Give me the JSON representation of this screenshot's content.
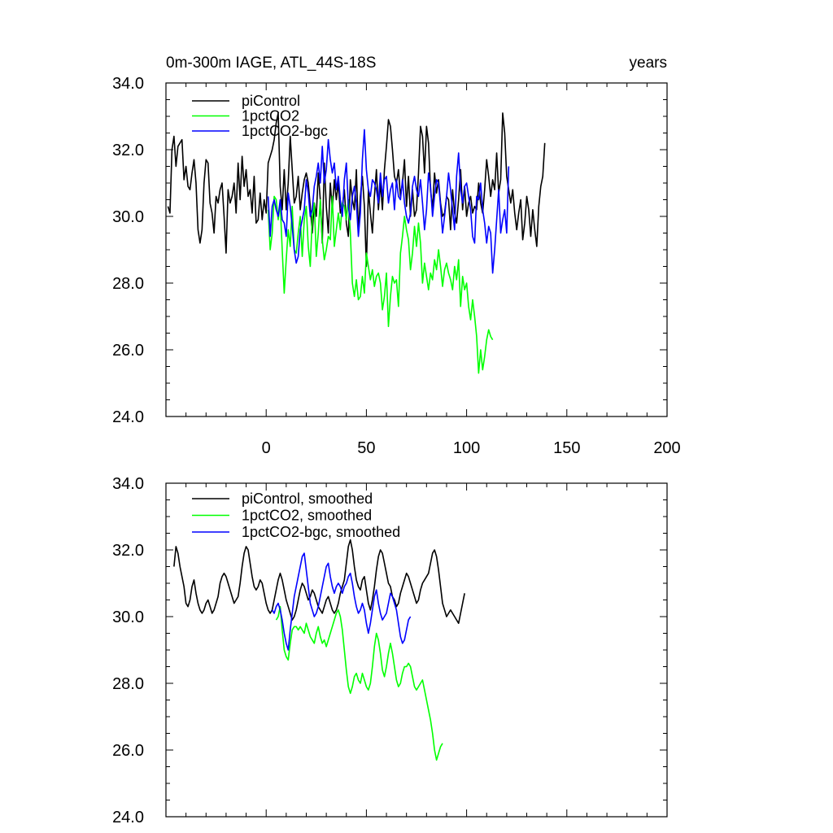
{
  "chart_data": [
    {
      "type": "line",
      "title": "0m-300m IAGE, ATL_44S-18S",
      "units": "years",
      "xlabel": "",
      "ylabel": "",
      "xlim": [
        -50,
        200
      ],
      "ylim": [
        24,
        34
      ],
      "xticks": [
        "0",
        "50",
        "100",
        "150",
        "200"
      ],
      "yticks": [
        "24.0",
        "26.0",
        "28.0",
        "30.0",
        "32.0",
        "34.0"
      ],
      "legend_position": "top-left",
      "grid": false,
      "series": [
        {
          "name": "piControl",
          "color": "#000000",
          "x_start": -49,
          "values": [
            30.3,
            30.1,
            32.0,
            32.4,
            31.5,
            32.1,
            32.2,
            32.3,
            31.1,
            31.5,
            30.9,
            30.8,
            31.3,
            31.7,
            31.0,
            29.6,
            29.2,
            29.6,
            31.0,
            31.7,
            31.6,
            30.4,
            30.1,
            29.5,
            30.6,
            30.4,
            30.8,
            31.0,
            30.0,
            28.9,
            30.8,
            30.4,
            30.6,
            31.0,
            30.1,
            31.6,
            30.5,
            31.8,
            30.9,
            31.4,
            30.6,
            30.8,
            30.1,
            31.2,
            29.8,
            29.9,
            30.7,
            29.9,
            30.5,
            30.1,
            31.6,
            31.8,
            32.0,
            32.3,
            32.8,
            33.1,
            30.9,
            30.2,
            31.4,
            30.2,
            31.0,
            32.4,
            31.4,
            30.4,
            30.6,
            31.2,
            30.2,
            30.7,
            31.1,
            31.3,
            31.0,
            30.3,
            29.5,
            30.4,
            30.0,
            31.3,
            30.5,
            29.2,
            31.6,
            30.3,
            29.5,
            31.0,
            30.2,
            31.1,
            30.5,
            31.0,
            30.1,
            30.3,
            30.8,
            29.8,
            29.4,
            31.1,
            30.5,
            30.2,
            31.4,
            29.5,
            30.6,
            31.2,
            30.3,
            28.5,
            30.8,
            30.1,
            29.5,
            30.6,
            31.4,
            30.2,
            31.0,
            30.2,
            31.4,
            32.1,
            32.9,
            32.7,
            32.0,
            31.2,
            31.0,
            31.4,
            30.6,
            31.0,
            31.7,
            30.3,
            31.2,
            30.0,
            30.8,
            30.0,
            30.2,
            31.3,
            32.7,
            32.4,
            31.3,
            32.7,
            32.2,
            30.8,
            30.2,
            31.3,
            30.7,
            31.1,
            30.4,
            30.0,
            30.1,
            30.6,
            30.5,
            29.6,
            30.8,
            30.1,
            29.8,
            30.5,
            31.4,
            30.2,
            30.9,
            30.0,
            30.4,
            30.6,
            30.1,
            30.3,
            30.2,
            31.0,
            30.4,
            30.1,
            30.8,
            31.7,
            31.2,
            30.6,
            31.1,
            30.8,
            31.9,
            30.7,
            31.1,
            33.1,
            32.5,
            31.2,
            30.8,
            30.4,
            30.8,
            30.1,
            29.6,
            30.1,
            30.5,
            29.3,
            29.8,
            30.6,
            30.2,
            29.4,
            30.2,
            29.6,
            29.1,
            30.3,
            30.9,
            31.2,
            32.2
          ]
        },
        {
          "name": "1pctCO2",
          "color": "#00ff00",
          "x_start": 1,
          "values": [
            30.2,
            29.0,
            29.5,
            30.6,
            30.5,
            29.9,
            30.4,
            29.0,
            27.7,
            28.7,
            29.6,
            29.1,
            30.3,
            29.0,
            28.9,
            29.5,
            30.0,
            28.8,
            29.9,
            30.3,
            29.1,
            28.5,
            30.0,
            30.4,
            28.8,
            29.5,
            30.5,
            29.3,
            28.7,
            29.0,
            29.4,
            29.3,
            30.6,
            29.1,
            29.6,
            30.1,
            29.6,
            30.4,
            30.3,
            29.9,
            30.5,
            29.5,
            28.0,
            27.6,
            28.1,
            27.5,
            27.6,
            28.2,
            27.7,
            28.9,
            28.5,
            28.1,
            28.4,
            27.9,
            28.2,
            28.3,
            28.0,
            27.2,
            27.6,
            28.3,
            26.7,
            27.6,
            28.2,
            28.0,
            28.1,
            27.3,
            28.9,
            29.4,
            30.0,
            29.6,
            29.3,
            28.4,
            28.9,
            29.7,
            29.1,
            29.8,
            29.2,
            28.0,
            28.6,
            28.2,
            27.8,
            28.3,
            28.1,
            28.7,
            28.4,
            29.0,
            28.5,
            27.9,
            28.4,
            28.6,
            28.3,
            28.1,
            27.8,
            28.5,
            28.1,
            28.7,
            27.3,
            28.2,
            27.8,
            28.0,
            27.3,
            26.9,
            27.5,
            27.0,
            26.4,
            25.3,
            26.0,
            25.4,
            25.8,
            26.3,
            26.6,
            26.4,
            26.3
          ]
        },
        {
          "name": "1pctCO2-bgc",
          "color": "#0000ff",
          "x_start": 1,
          "values": [
            30.6,
            29.4,
            30.3,
            30.5,
            30.2,
            30.0,
            30.5,
            29.9,
            29.8,
            29.4,
            30.7,
            30.3,
            29.7,
            29.0,
            28.6,
            28.8,
            29.6,
            29.9,
            30.2,
            31.1,
            30.7,
            30.0,
            30.2,
            30.9,
            31.2,
            31.6,
            31.0,
            32.1,
            31.0,
            31.4,
            32.3,
            31.7,
            31.3,
            31.6,
            30.8,
            31.2,
            30.5,
            30.0,
            31.1,
            31.6,
            30.3,
            29.9,
            30.6,
            30.9,
            30.4,
            29.4,
            30.1,
            31.7,
            32.6,
            31.4,
            30.8,
            30.6,
            31.1,
            31.0,
            30.8,
            30.4,
            31.3,
            30.6,
            31.1,
            31.2,
            30.4,
            30.8,
            31.0,
            30.2,
            31.1,
            30.6,
            30.5,
            31.1,
            30.4,
            30.0,
            29.8,
            30.1,
            30.9,
            31.2,
            30.8,
            30.6,
            31.1,
            30.4,
            29.6,
            30.2,
            31.3,
            30.9,
            30.0,
            30.6,
            31.1,
            31.0,
            30.3,
            29.5,
            30.0,
            30.6,
            31.3,
            30.8,
            30.2,
            29.6,
            31.2,
            31.9,
            30.8,
            30.4,
            30.9,
            31.0,
            30.6,
            30.2,
            29.4,
            29.2,
            30.6,
            30.5,
            31.0,
            30.2,
            29.8,
            29.2,
            29.7,
            29.5,
            28.3,
            29.0,
            29.9,
            30.8,
            29.5,
            29.9,
            30.2,
            29.5,
            31.5
          ]
        }
      ]
    },
    {
      "type": "line",
      "title": "",
      "xlabel": "",
      "ylabel": "",
      "xlim": [
        -50,
        200
      ],
      "ylim": [
        24,
        34
      ],
      "xticks": [],
      "yticks": [
        "24.0",
        "26.0",
        "28.0",
        "30.0",
        "32.0",
        "34.0"
      ],
      "legend_position": "top-left",
      "grid": false,
      "series": [
        {
          "name": "piControl, smoothed",
          "color": "#000000",
          "x_start": -46,
          "values": [
            31.5,
            32.1,
            31.9,
            31.5,
            31.2,
            30.9,
            30.4,
            30.3,
            30.5,
            30.9,
            31.1,
            30.7,
            30.4,
            30.2,
            30.1,
            30.2,
            30.4,
            30.5,
            30.3,
            30.1,
            30.2,
            30.4,
            30.6,
            31.0,
            31.2,
            31.3,
            31.2,
            31.0,
            30.8,
            30.6,
            30.4,
            30.5,
            30.6,
            31.0,
            31.5,
            31.9,
            32.1,
            32.0,
            31.6,
            31.2,
            30.9,
            30.8,
            30.9,
            31.1,
            31.0,
            30.7,
            30.4,
            30.2,
            30.1,
            30.2,
            30.5,
            30.8,
            31.1,
            31.3,
            31.1,
            30.8,
            30.5,
            30.3,
            30.1,
            29.9,
            30.0,
            30.2,
            30.5,
            30.8,
            31.0,
            30.9,
            30.7,
            30.5,
            30.6,
            30.8,
            30.7,
            30.5,
            30.3,
            30.2,
            30.1,
            30.3,
            30.5,
            30.6,
            30.4,
            30.2,
            30.1,
            30.2,
            30.4,
            30.7,
            30.9,
            31.1,
            31.6,
            32.1,
            32.3,
            32.0,
            31.5,
            31.1,
            30.9,
            30.8,
            31.1,
            31.2,
            30.8,
            30.4,
            30.2,
            30.5,
            30.9,
            31.4,
            31.8,
            32.0,
            31.9,
            31.6,
            31.3,
            31.0,
            30.9,
            30.6,
            30.5,
            30.3,
            30.4,
            30.7,
            30.9,
            31.1,
            31.3,
            31.2,
            31.0,
            30.8,
            30.6,
            30.4,
            30.5,
            30.8,
            31.0,
            31.1,
            31.2,
            31.3,
            31.6,
            31.9,
            32.0,
            31.8,
            31.4,
            30.9,
            30.4,
            30.2,
            30.0,
            30.1,
            30.2,
            30.1,
            30.0,
            29.9,
            29.8,
            30.1,
            30.4,
            30.7
          ]
        },
        {
          "name": "1pctCO2, smoothed",
          "color": "#00ff00",
          "x_start": 5,
          "values": [
            29.9,
            30.0,
            30.3,
            29.6,
            29.0,
            28.8,
            28.7,
            29.2,
            29.6,
            29.7,
            29.7,
            29.6,
            29.7,
            29.6,
            29.5,
            29.8,
            29.6,
            29.4,
            29.3,
            29.2,
            29.5,
            29.7,
            29.4,
            29.2,
            29.3,
            29.1,
            29.3,
            29.5,
            29.7,
            29.9,
            30.1,
            30.2,
            30.0,
            29.6,
            29.0,
            28.4,
            27.9,
            27.7,
            27.9,
            28.2,
            28.3,
            28.1,
            28.0,
            28.3,
            28.1,
            27.9,
            27.8,
            28.0,
            28.5,
            29.1,
            29.5,
            29.3,
            28.9,
            28.4,
            28.2,
            28.5,
            28.9,
            29.2,
            28.9,
            28.5,
            28.1,
            27.9,
            28.0,
            28.3,
            28.5,
            28.5,
            28.6,
            28.5,
            28.2,
            27.9,
            27.8,
            27.9,
            28.0,
            28.1,
            27.8,
            27.5,
            27.2,
            26.9,
            26.5,
            26.0,
            25.7,
            25.9,
            26.1,
            26.2
          ]
        },
        {
          "name": "1pctCO2-bgc, smoothed",
          "color": "#0000ff",
          "x_start": 3,
          "values": [
            30.2,
            30.1,
            30.3,
            30.4,
            30.2,
            29.9,
            29.5,
            29.2,
            29.0,
            29.6,
            30.1,
            30.6,
            30.9,
            31.2,
            31.5,
            31.8,
            31.9,
            31.4,
            30.9,
            30.4,
            30.2,
            30.0,
            30.1,
            30.3,
            30.6,
            30.9,
            31.2,
            31.5,
            31.6,
            31.2,
            30.9,
            30.7,
            30.9,
            31.0,
            30.9,
            30.7,
            30.9,
            31.0,
            31.2,
            31.3,
            31.0,
            30.6,
            30.3,
            30.1,
            30.2,
            30.4,
            30.2,
            29.8,
            29.5,
            29.8,
            30.2,
            30.6,
            30.8,
            30.4,
            30.1,
            29.9,
            30.0,
            30.1,
            30.4,
            30.7,
            30.6,
            30.4,
            30.2,
            29.8,
            29.4,
            29.2,
            29.3,
            29.6,
            29.9,
            30.0
          ]
        }
      ]
    }
  ]
}
